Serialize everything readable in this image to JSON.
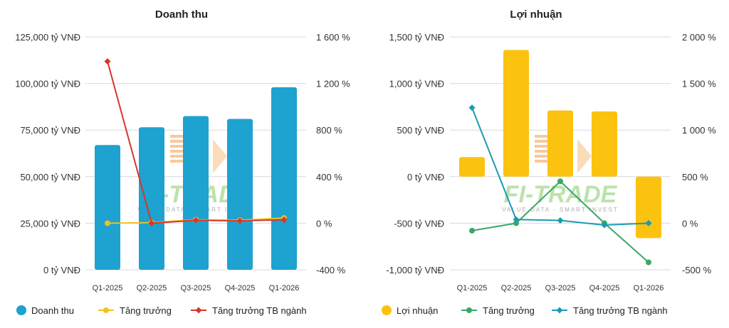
{
  "watermark": {
    "logo_text": "FI-TRADE",
    "tagline": "VALUE DATA - SMART INVEST"
  },
  "chart_data": [
    {
      "type": "bar",
      "title": "Doanh thu",
      "categories": [
        "Q1-2025",
        "Q2-2025",
        "Q3-2025",
        "Q4-2025",
        "Q1-2026"
      ],
      "y_left": {
        "min": 0,
        "max": 125000,
        "step": 25000,
        "format_suffix": " tỷ VNĐ"
      },
      "y_right": {
        "min": -400,
        "max": 1600,
        "step": 400,
        "format_suffix": " %"
      },
      "series": [
        {
          "name": "Doanh thu",
          "kind": "bar",
          "axis": "left",
          "color": "#1ea2cf",
          "values": [
            67000,
            76500,
            82500,
            81000,
            98000
          ]
        },
        {
          "name": "Tăng trưởng",
          "kind": "line",
          "axis": "right",
          "color": "#f2c21b",
          "values": [
            0,
            5,
            30,
            25,
            45
          ]
        },
        {
          "name": "Tăng trưởng TB ngành",
          "kind": "line",
          "axis": "right",
          "color": "#d9362b",
          "values": [
            1390,
            0,
            25,
            20,
            30
          ]
        }
      ],
      "legend": [
        {
          "label": "Doanh thu",
          "marker": "circle",
          "color": "#1ea2cf"
        },
        {
          "label": "Tăng trưởng",
          "marker": "line-dot",
          "color": "#f2c21b"
        },
        {
          "label": "Tăng trưởng TB ngành",
          "marker": "line-diamond",
          "color": "#d9362b"
        }
      ],
      "legend_position": "bottom",
      "grid": true
    },
    {
      "type": "bar",
      "title": "Lợi nhuận",
      "categories": [
        "Q1-2025",
        "Q2-2025",
        "Q3-2025",
        "Q4-2025",
        "Q1-2026"
      ],
      "y_left": {
        "min": -1000,
        "max": 1500,
        "step": 500,
        "format_suffix": " tỷ VNĐ"
      },
      "y_right": {
        "min": -500,
        "max": 2000,
        "step": 500,
        "format_suffix": " %"
      },
      "series": [
        {
          "name": "Lợi nhuận",
          "kind": "bar",
          "axis": "left",
          "color": "#fbc20f",
          "values": [
            210,
            1360,
            710,
            700,
            -660
          ]
        },
        {
          "name": "Tăng trưởng",
          "kind": "line",
          "axis": "right",
          "color": "#3aa766",
          "values": [
            -80,
            0,
            450,
            0,
            -420
          ]
        },
        {
          "name": "Tăng trưởng TB ngành",
          "kind": "line",
          "axis": "right",
          "color": "#1a9bb4",
          "values": [
            1240,
            40,
            30,
            -20,
            0
          ]
        }
      ],
      "legend": [
        {
          "label": "Lợi nhuận",
          "marker": "circle",
          "color": "#fbc20f"
        },
        {
          "label": "Tăng trưởng",
          "marker": "line-dot",
          "color": "#3aa766"
        },
        {
          "label": "Tăng trưởng TB ngành",
          "marker": "line-diamond",
          "color": "#1a9bb4"
        }
      ],
      "legend_position": "bottom",
      "grid": true
    }
  ]
}
